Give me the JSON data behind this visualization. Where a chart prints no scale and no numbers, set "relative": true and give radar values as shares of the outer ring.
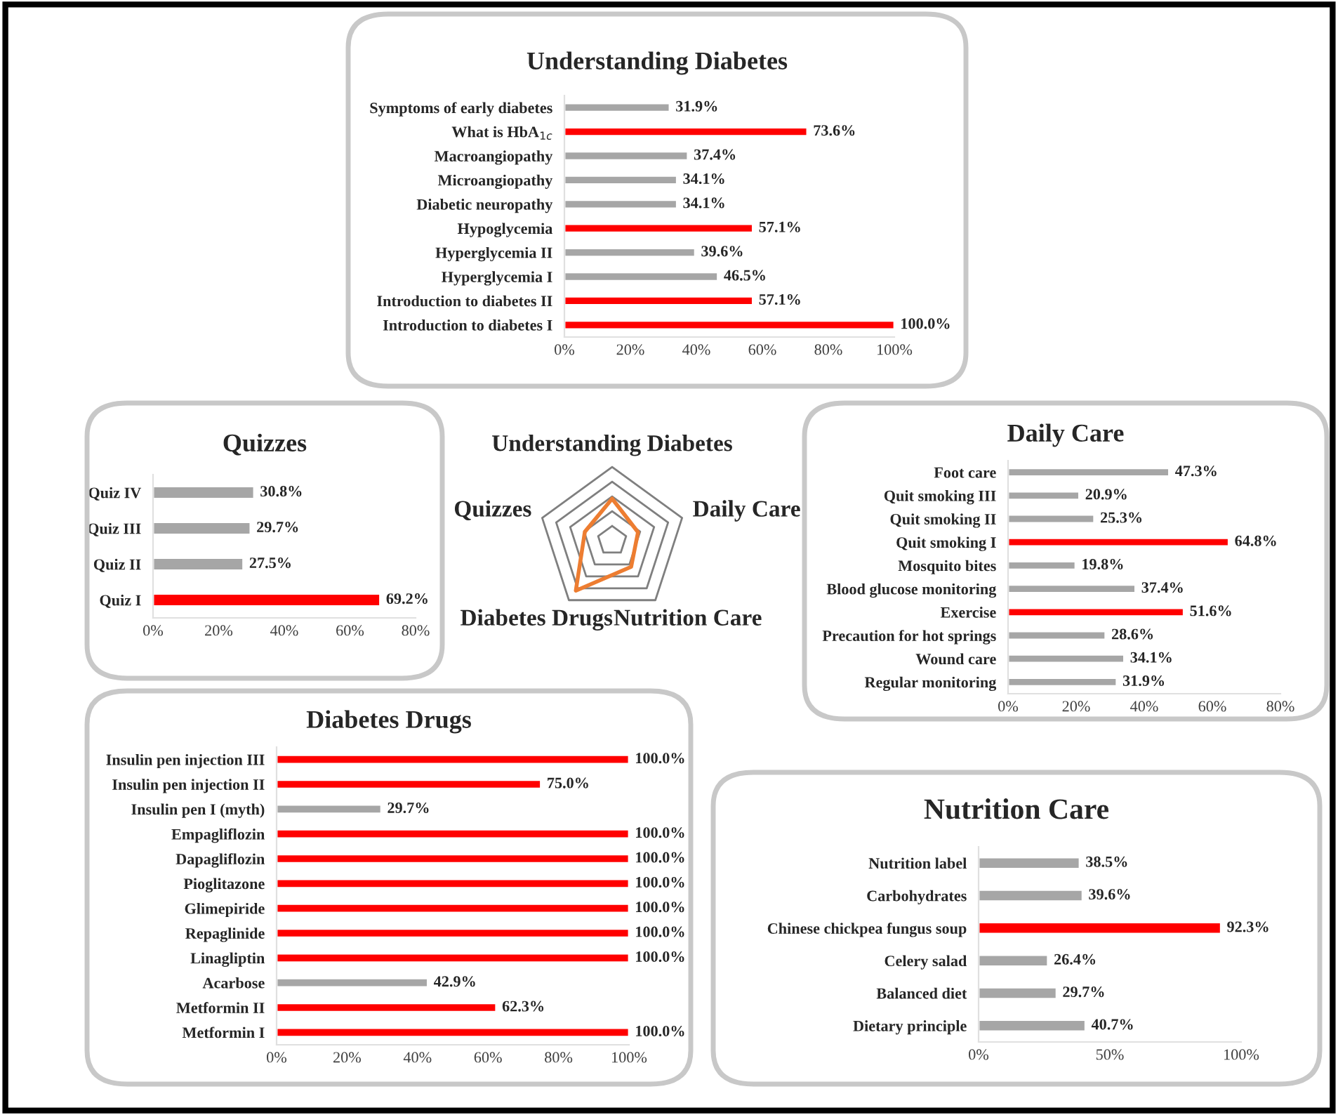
{
  "chart_data": [
    {
      "type": "bar",
      "orientation": "horizontal",
      "title": "Understanding Diabetes",
      "categories": [
        "Symptoms of early diabetes",
        "What is HbA$_{1c}$",
        "Macroangiopathy",
        "Microangiopathy",
        "Diabetic neuropathy",
        "Hypoglycemia",
        "Hyperglycemia II",
        "Hyperglycemia I",
        "Introduction to diabetes II",
        "Introduction to diabetes I"
      ],
      "values": [
        31.9,
        73.6,
        37.4,
        34.1,
        34.1,
        57.1,
        39.6,
        46.5,
        57.1,
        100.0
      ],
      "value_labels": [
        "31.9%",
        "73.6%",
        "37.4%",
        "34.1%",
        "34.1%",
        "57.1%",
        "39.6%",
        "46.5%",
        "57.1%",
        "100.0%"
      ],
      "colors": [
        "#a6a6a6",
        "#ff0000",
        "#a6a6a6",
        "#a6a6a6",
        "#a6a6a6",
        "#ff0000",
        "#a6a6a6",
        "#a6a6a6",
        "#ff0000",
        "#ff0000"
      ],
      "xlim": [
        0,
        100
      ],
      "xticks": [
        {
          "value": 0,
          "label": "0%"
        },
        {
          "value": 20,
          "label": "20%"
        },
        {
          "value": 40,
          "label": "40%"
        },
        {
          "value": 60,
          "label": "60%"
        },
        {
          "value": 80,
          "label": "80%"
        },
        {
          "value": 100,
          "label": "100%"
        }
      ]
    },
    {
      "type": "bar",
      "orientation": "horizontal",
      "title": "Quizzes",
      "categories": [
        "Quiz IV",
        "Quiz III",
        "Quiz II",
        "Quiz I"
      ],
      "values": [
        30.8,
        29.7,
        27.5,
        69.2
      ],
      "value_labels": [
        "30.8%",
        "29.7%",
        "27.5%",
        "69.2%"
      ],
      "colors": [
        "#a6a6a6",
        "#a6a6a6",
        "#a6a6a6",
        "#ff0000"
      ],
      "xlim": [
        0,
        80
      ],
      "xticks": [
        {
          "value": 0,
          "label": "0%"
        },
        {
          "value": 20,
          "label": "20%"
        },
        {
          "value": 40,
          "label": "40%"
        },
        {
          "value": 60,
          "label": "60%"
        },
        {
          "value": 80,
          "label": "80%"
        }
      ]
    },
    {
      "type": "radar",
      "relative": true,
      "grid": true,
      "categories": [
        "Understanding Diabetes",
        "Daily Care",
        "Nutrition Care",
        "Diabetes Drugs",
        "Quizzes"
      ],
      "series": [
        {
          "color": "#ed7d31",
          "values": [
            0.57,
            0.37,
            0.44,
            0.84,
            0.39
          ]
        }
      ]
    },
    {
      "type": "bar",
      "orientation": "horizontal",
      "title": "Daily Care",
      "categories": [
        "Foot care",
        "Quit smoking III",
        "Quit smoking II",
        "Quit smoking I",
        "Mosquito bites",
        "Blood glucose monitoring",
        "Exercise",
        "Precaution for hot springs",
        "Wound care",
        "Regular monitoring"
      ],
      "values": [
        47.3,
        20.9,
        25.3,
        64.8,
        19.8,
        37.4,
        51.6,
        28.6,
        34.1,
        31.9
      ],
      "value_labels": [
        "47.3%",
        "20.9%",
        "25.3%",
        "64.8%",
        "19.8%",
        "37.4%",
        "51.6%",
        "28.6%",
        "34.1%",
        "31.9%"
      ],
      "colors": [
        "#a6a6a6",
        "#a6a6a6",
        "#a6a6a6",
        "#ff0000",
        "#a6a6a6",
        "#a6a6a6",
        "#ff0000",
        "#a6a6a6",
        "#a6a6a6",
        "#a6a6a6"
      ],
      "xlim": [
        0,
        80
      ],
      "xticks": [
        {
          "value": 0,
          "label": "0%"
        },
        {
          "value": 20,
          "label": "20%"
        },
        {
          "value": 40,
          "label": "40%"
        },
        {
          "value": 60,
          "label": "60%"
        },
        {
          "value": 80,
          "label": "80%"
        }
      ]
    },
    {
      "type": "bar",
      "orientation": "horizontal",
      "title": "Diabetes Drugs",
      "categories": [
        "Insulin pen injection III",
        "Insulin pen injection II",
        "Insulin pen I (myth)",
        "Empagliflozin",
        "Dapagliflozin",
        "Pioglitazone",
        "Glimepiride",
        "Repaglinide",
        "Linagliptin",
        "Acarbose",
        "Metformin II",
        "Metformin I"
      ],
      "values": [
        100.0,
        75.0,
        29.7,
        100.0,
        100.0,
        100.0,
        100.0,
        100.0,
        100.0,
        42.9,
        62.3,
        100.0
      ],
      "value_labels": [
        "100.0%",
        "75.0%",
        "29.7%",
        "100.0%",
        "100.0%",
        "100.0%",
        "100.0%",
        "100.0%",
        "100.0%",
        "42.9%",
        "62.3%",
        "100.0%"
      ],
      "colors": [
        "#ff0000",
        "#ff0000",
        "#a6a6a6",
        "#ff0000",
        "#ff0000",
        "#ff0000",
        "#ff0000",
        "#ff0000",
        "#ff0000",
        "#a6a6a6",
        "#ff0000",
        "#ff0000"
      ],
      "xlim": [
        0,
        100
      ],
      "xticks": [
        {
          "value": 0,
          "label": "0%"
        },
        {
          "value": 20,
          "label": "20%"
        },
        {
          "value": 40,
          "label": "40%"
        },
        {
          "value": 60,
          "label": "60%"
        },
        {
          "value": 80,
          "label": "80%"
        },
        {
          "value": 100,
          "label": "100%"
        }
      ]
    },
    {
      "type": "bar",
      "orientation": "horizontal",
      "title": "Nutrition Care",
      "categories": [
        "Nutrition label",
        "Carbohydrates",
        "Chinese chickpea fungus soup",
        "Celery salad",
        "Balanced diet",
        "Dietary principle"
      ],
      "values": [
        38.5,
        39.6,
        92.3,
        26.4,
        29.7,
        40.7
      ],
      "value_labels": [
        "38.5%",
        "39.6%",
        "92.3%",
        "26.4%",
        "29.7%",
        "40.7%"
      ],
      "colors": [
        "#a6a6a6",
        "#a6a6a6",
        "#ff0000",
        "#a6a6a6",
        "#a6a6a6",
        "#a6a6a6"
      ],
      "xlim": [
        0,
        100
      ],
      "xticks": [
        {
          "value": 0,
          "label": "0%"
        },
        {
          "value": 50,
          "label": "50%"
        },
        {
          "value": 100,
          "label": "100%"
        }
      ]
    }
  ]
}
